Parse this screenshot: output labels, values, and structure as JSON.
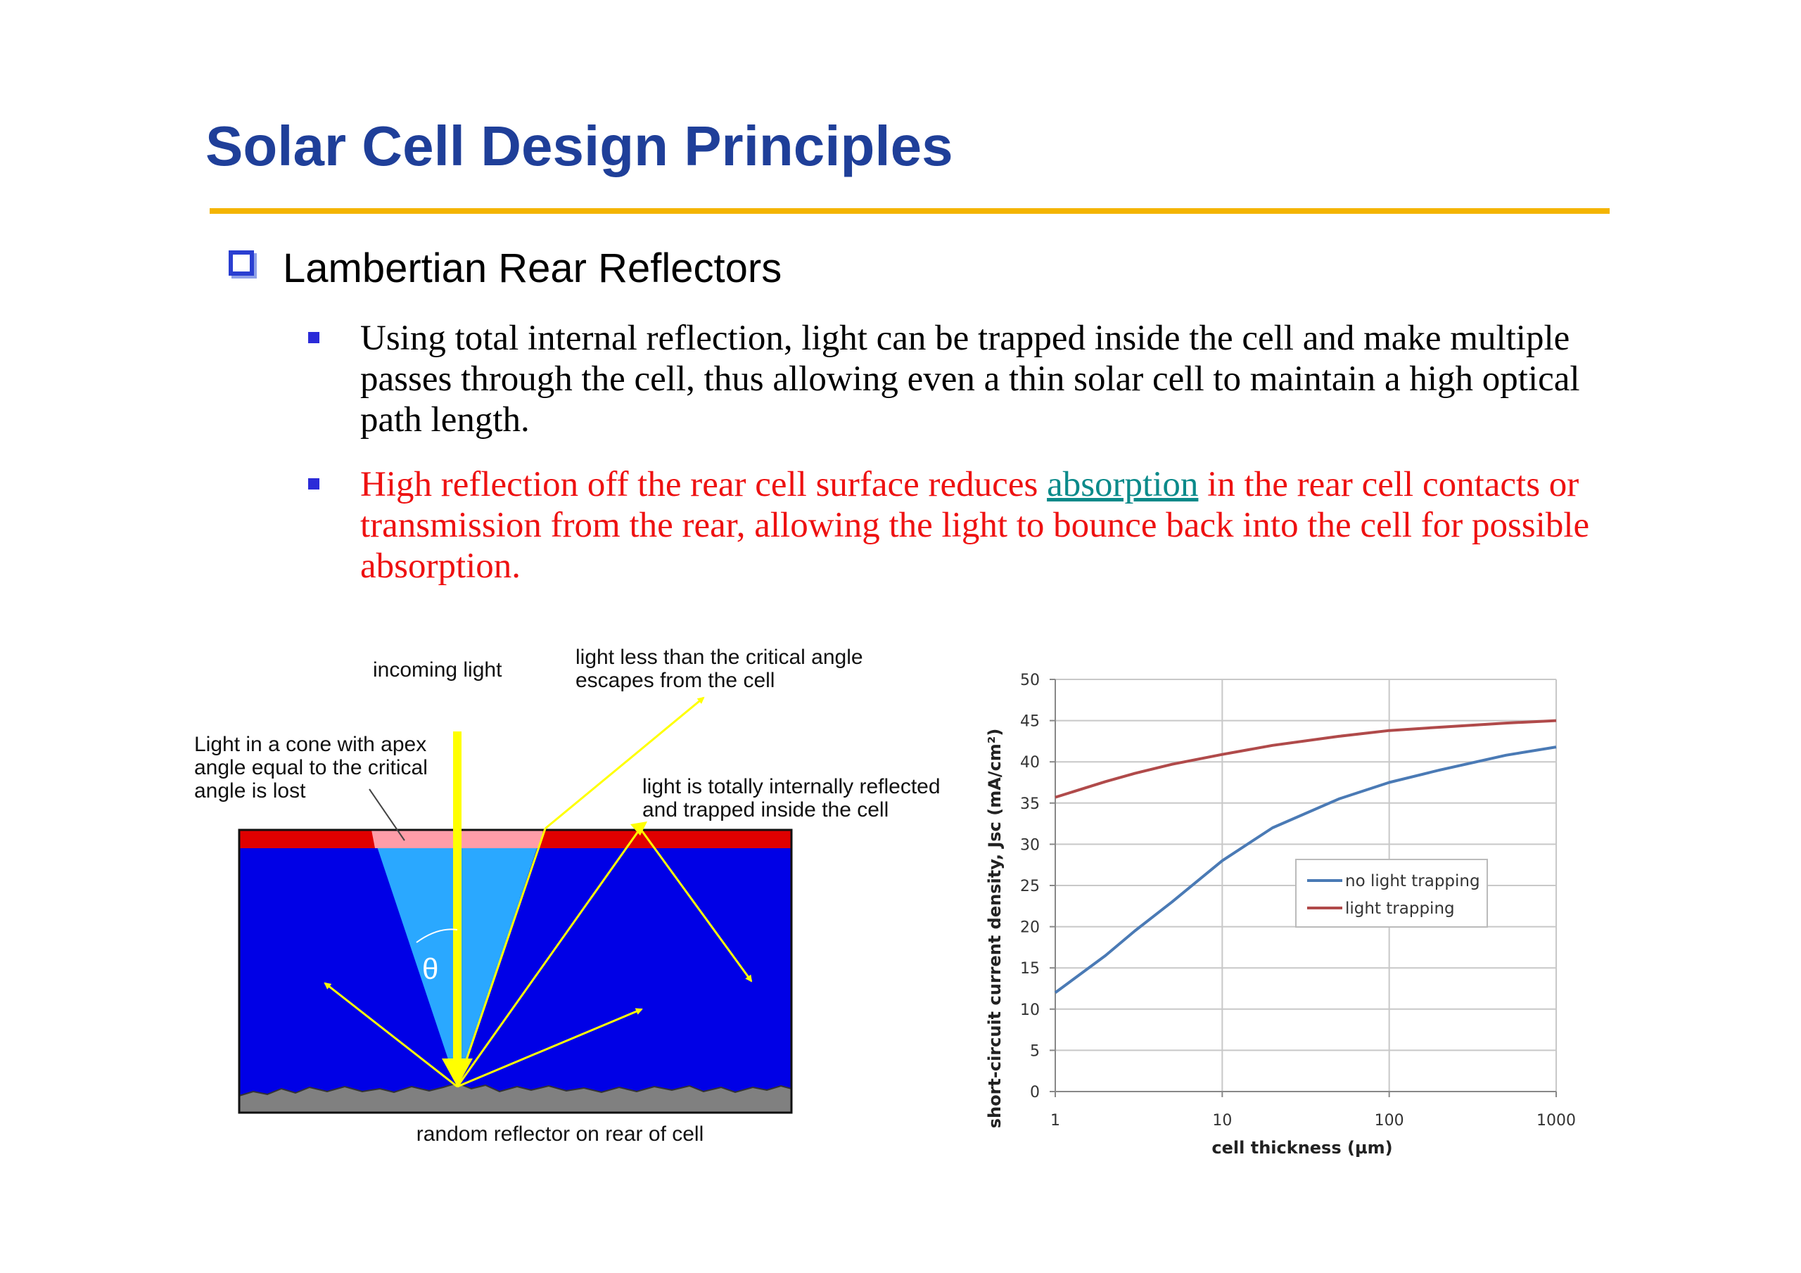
{
  "slide": {
    "title": "Solar Cell Design Principles",
    "accent_color": "#f4b400",
    "title_color": "#1f3f99"
  },
  "section": {
    "heading": "Lambertian Rear Reflectors",
    "bullet_icon": "hollow-square-icon"
  },
  "bullets": [
    {
      "text": "Using total internal reflection, light can be trapped inside the cell and make multiple passes through the cell, thus allowing even a thin solar cell to maintain a high optical path length.",
      "color": "#000000"
    },
    {
      "text_before": "High reflection off the rear cell surface reduces ",
      "link": "absorption",
      "text_after": " in the rear cell contacts or transmission from the rear, allowing the light to bounce back into the cell for possible absorption.",
      "color": "#ee1111"
    }
  ],
  "diagram": {
    "label_incoming": "incoming light",
    "label_escape_1": "light less than the critical angle",
    "label_escape_2": "escapes from the cell",
    "label_cone_1": "Light in a cone with apex",
    "label_cone_2": "angle equal to the critical",
    "label_cone_3": "angle is lost",
    "label_tir_1": "light is totally internally reflected",
    "label_tir_2": "and trapped inside the cell",
    "label_theta": "θ",
    "label_reflector": "random reflector on rear of cell"
  },
  "chart_data": {
    "type": "line",
    "xlabel": "cell thickness (µm)",
    "ylabel": "short-circuit current density, Jsc (mA/cm²)",
    "x_scale": "log",
    "xlim": [
      1,
      1000
    ],
    "ylim": [
      0,
      50
    ],
    "x_ticks": [
      "1",
      "10",
      "100",
      "1000"
    ],
    "y_ticks": [
      "0",
      "5",
      "10",
      "15",
      "20",
      "25",
      "30",
      "35",
      "40",
      "45",
      "50"
    ],
    "grid": true,
    "legend_position": "right-middle",
    "series": [
      {
        "name": "no light trapping",
        "color": "#4a7ab5",
        "x": [
          1,
          2,
          3,
          5,
          10,
          20,
          50,
          100,
          200,
          500,
          1000
        ],
        "y": [
          12,
          16.5,
          19.5,
          23,
          28,
          32,
          35.5,
          37.5,
          39,
          40.8,
          41.8
        ]
      },
      {
        "name": "light trapping",
        "color": "#b04a4a",
        "x": [
          1,
          2,
          3,
          5,
          10,
          20,
          50,
          100,
          200,
          500,
          1000
        ],
        "y": [
          35.7,
          37.6,
          38.6,
          39.7,
          40.9,
          42,
          43.1,
          43.8,
          44.2,
          44.7,
          45
        ]
      }
    ]
  }
}
